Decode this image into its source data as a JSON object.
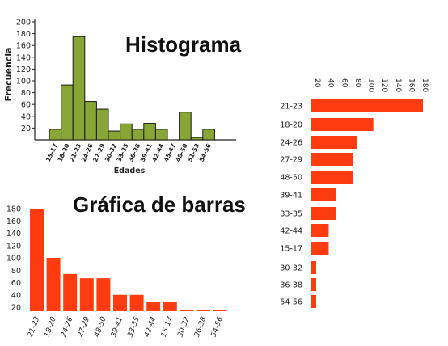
{
  "chart_data": [
    {
      "type": "bar",
      "title": "Histograma",
      "xlabel": "Edades",
      "ylabel": "Frecuencia",
      "ylim": [
        0,
        200
      ],
      "yticks": [
        20,
        40,
        60,
        80,
        100,
        120,
        140,
        160,
        180,
        200
      ],
      "categories": [
        "15-17",
        "18-20",
        "21-23",
        "24-26",
        "27-29",
        "30-32",
        "33-35",
        "36-38",
        "39-41",
        "42-44",
        "45-47",
        "48-50",
        "51-53",
        "54-56"
      ],
      "values": [
        18,
        93,
        175,
        65,
        52,
        15,
        27,
        18,
        28,
        18,
        0,
        47,
        4,
        18
      ],
      "bar_color": "#88a636",
      "grid": false
    },
    {
      "type": "bar",
      "title": "Gráfica de barras",
      "orientation": "vertical",
      "ylim": [
        0,
        185
      ],
      "yticks": [
        20,
        40,
        60,
        80,
        100,
        120,
        140,
        160,
        180
      ],
      "categories": [
        "21-23",
        "18-20",
        "24-26",
        "27-29",
        "48-50",
        "39-41",
        "33-35",
        "42-44",
        "15-17",
        "30-32",
        "36-38",
        "54-56"
      ],
      "values": [
        180,
        100,
        74,
        67,
        67,
        40,
        40,
        28,
        28,
        15,
        15,
        15
      ],
      "bar_color": "#ff3c10",
      "grid": false
    },
    {
      "type": "bar",
      "orientation": "horizontal",
      "xlim": [
        0,
        185
      ],
      "xticks": [
        20,
        40,
        60,
        80,
        100,
        120,
        140,
        160,
        180
      ],
      "categories": [
        "21-23",
        "18-20",
        "24-26",
        "27-29",
        "48-50",
        "39-41",
        "33-35",
        "42-44",
        "15-17",
        "30-32",
        "36-38",
        "54-56"
      ],
      "values": [
        180,
        100,
        74,
        67,
        67,
        40,
        40,
        28,
        28,
        15,
        15,
        15
      ],
      "bar_color": "#ff3c10",
      "grid": false
    }
  ]
}
